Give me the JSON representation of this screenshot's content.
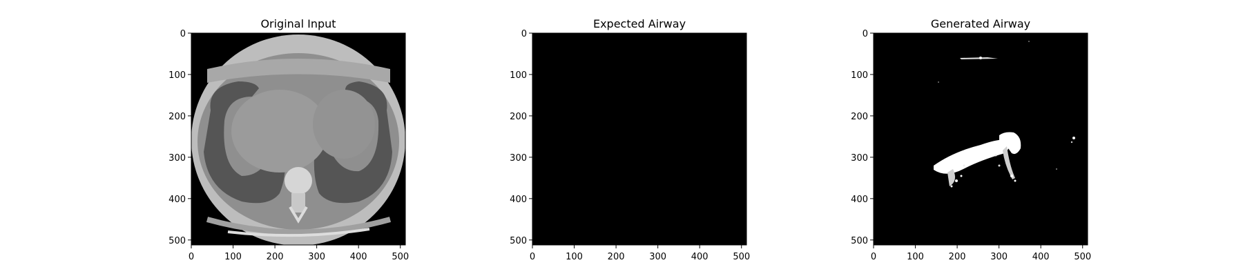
{
  "panels": [
    {
      "title": "Original Input",
      "image": "ct-slice",
      "x_ticks": [
        0,
        100,
        200,
        300,
        400,
        500
      ],
      "y_ticks": [
        0,
        100,
        200,
        300,
        400,
        500
      ]
    },
    {
      "title": "Expected Airway",
      "image": "empty-mask",
      "x_ticks": [
        0,
        100,
        200,
        300,
        400,
        500
      ],
      "y_ticks": [
        0,
        100,
        200,
        300,
        400,
        500
      ]
    },
    {
      "title": "Generated Airway",
      "image": "predicted-mask",
      "x_ticks": [
        0,
        100,
        200,
        300,
        400,
        500
      ],
      "y_ticks": [
        0,
        100,
        200,
        300,
        400,
        500
      ]
    }
  ],
  "image_extent": [
    0,
    512
  ],
  "colors": {
    "background": "#000000",
    "ct_body": "#9a9a9a",
    "ct_fat_ring": "#bdbdbd",
    "ct_lung": "#545454",
    "ct_bone": "#d8d8d8",
    "mask": "#ffffff"
  }
}
